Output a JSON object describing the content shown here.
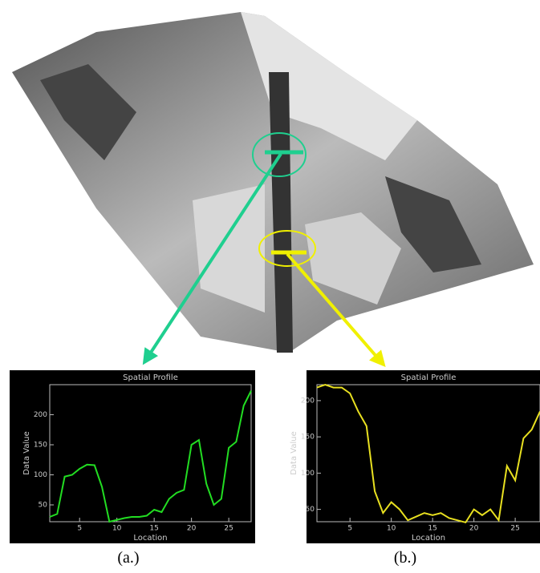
{
  "chart_data": [
    {
      "type": "line",
      "title": "Spatial Profile",
      "x_label": "Location",
      "y_label": "Data Value",
      "caption": "(a.)",
      "x": [
        1,
        2,
        3,
        4,
        5,
        6,
        7,
        8,
        9,
        10,
        11,
        12,
        13,
        14,
        15,
        16,
        17,
        18,
        19,
        20,
        21,
        22,
        23,
        24,
        25,
        26,
        27,
        28
      ],
      "series": [
        {
          "color": "#22dd22",
          "values": [
            30,
            35,
            97,
            100,
            110,
            117,
            116,
            80,
            22,
            25,
            28,
            30,
            30,
            32,
            42,
            38,
            60,
            70,
            75,
            150,
            158,
            85,
            50,
            60,
            145,
            155,
            215,
            240
          ]
        }
      ],
      "xlim": [
        1,
        28
      ],
      "ylim": [
        22,
        250
      ],
      "xticks": [
        5,
        10,
        15,
        20,
        25
      ],
      "yticks": [
        50,
        100,
        150,
        200
      ]
    },
    {
      "type": "line",
      "title": "Spatial Profile",
      "x_label": "Location",
      "y_label": "Data Value",
      "caption": "(b.)",
      "x": [
        1,
        2,
        3,
        4,
        5,
        6,
        7,
        8,
        9,
        10,
        11,
        12,
        13,
        14,
        15,
        16,
        17,
        18,
        19,
        20,
        21,
        22,
        23,
        24,
        25,
        26,
        27,
        28
      ],
      "series": [
        {
          "color": "#e8e020",
          "values": [
            218,
            222,
            218,
            218,
            210,
            185,
            165,
            75,
            45,
            60,
            50,
            35,
            40,
            45,
            42,
            45,
            38,
            35,
            32,
            50,
            42,
            50,
            35,
            110,
            90,
            148,
            160,
            185
          ]
        }
      ],
      "xlim": [
        1,
        28
      ],
      "ylim": [
        33,
        222
      ],
      "xticks": [
        5,
        10,
        15,
        20,
        25
      ],
      "yticks": [
        50,
        100,
        150,
        200
      ]
    }
  ]
}
